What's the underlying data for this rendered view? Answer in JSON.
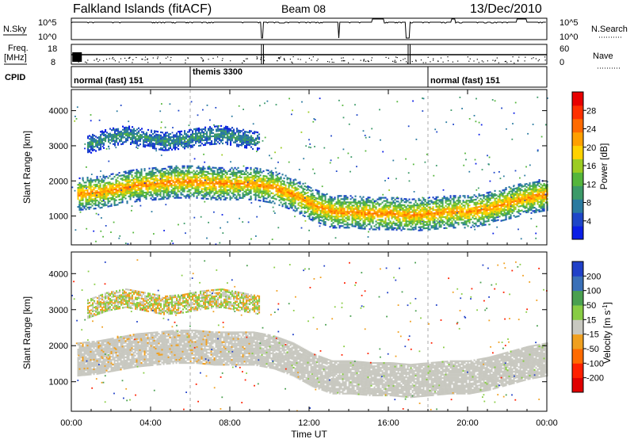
{
  "header": {
    "station": "Falkland Islands (fitACF)",
    "beam": "Beam 08",
    "date": "13/Dec/2010"
  },
  "status_panels": {
    "nsky_label": "N.Sky",
    "nsearch_label": "N.Search",
    "nsky_ticks": [
      "10^5",
      "10^0"
    ],
    "nsearch_ticks": [
      "10^5",
      "10^0"
    ],
    "freq_label": "Freq.",
    "freq_unit": "[MHz]",
    "freq_ticks": [
      "18",
      "8"
    ],
    "nave_label": "Nave",
    "nave_ticks": [
      "60",
      "0"
    ],
    "cpid_label": "CPID",
    "cpid_segments": [
      {
        "label": "normal (fast) 151",
        "start_hour": 0
      },
      {
        "label": "themis 3300",
        "start_hour": 6
      },
      {
        "label": "normal (fast) 151",
        "start_hour": 18
      }
    ]
  },
  "chart_data": [
    {
      "type": "heatmap",
      "panel": "power",
      "ylabel": "Slant Range [km]",
      "ylim": [
        180,
        4600
      ],
      "yticks": [
        1000,
        2000,
        3000,
        4000
      ],
      "xlim": [
        0,
        24
      ],
      "colorbar_label": "Power [dB]",
      "colorbar_ticks": [
        4,
        8,
        12,
        16,
        20,
        24,
        28
      ],
      "colorbar_colors": [
        "#0a1ee6",
        "#1e46c8",
        "#2a7aa0",
        "#3c9a68",
        "#55b63c",
        "#9ccc22",
        "#ffd200",
        "#ffa000",
        "#ff6a00",
        "#ff3000",
        "#e80000"
      ],
      "echo_bands": [
        {
          "t": [
            0.3,
            24
          ],
          "center": [
            1600,
            1650,
            1750,
            1850,
            1900,
            1950,
            1950,
            1900,
            1900,
            1900,
            1800,
            1600,
            1300,
            1100,
            1100,
            1050,
            1050,
            1000,
            1050,
            1100,
            1100,
            1200,
            1350,
            1500,
            1600
          ],
          "width": 450,
          "power": 22
        },
        {
          "t": [
            0.8,
            9.5
          ],
          "center": [
            3000,
            3200,
            3300,
            3200,
            3100,
            3150,
            3250,
            3300,
            3200,
            3100
          ],
          "width": 250,
          "power": 9
        }
      ]
    },
    {
      "type": "heatmap",
      "panel": "velocity",
      "ylabel": "Slant Range [km]",
      "ylim": [
        180,
        4600
      ],
      "yticks": [
        1000,
        2000,
        3000,
        4000
      ],
      "xlim": [
        0,
        24
      ],
      "xticks": [
        "00:00",
        "04:00",
        "08:00",
        "12:00",
        "16:00",
        "20:00",
        "00:00"
      ],
      "xlabel": "Time UT",
      "colorbar_label": "Velocity [m s^-1]",
      "colorbar_ticks": [
        200,
        100,
        50,
        15,
        -15,
        -50,
        -100,
        -200
      ],
      "colorbar_colors": [
        "#2040c8",
        "#3a70b8",
        "#4aa050",
        "#88cc44",
        "#c8c8c0",
        "#f0a020",
        "#ff6a00",
        "#ff2000",
        "#e00000"
      ],
      "note": "ground scatter gray, sporadic positive (green) and negative (orange) velocities"
    }
  ]
}
